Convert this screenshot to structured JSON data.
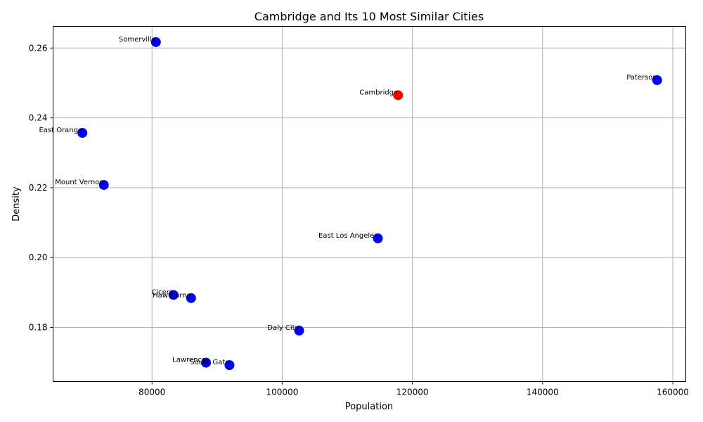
{
  "chart_data": {
    "type": "scatter",
    "title": "Cambridge and Its 10 Most Similar Cities",
    "xlabel": "Population",
    "ylabel": "Density",
    "xlim": [
      64800,
      162000
    ],
    "ylim": [
      0.1645,
      0.2662
    ],
    "xticks": [
      80000,
      100000,
      120000,
      140000,
      160000
    ],
    "yticks": [
      0.18,
      0.2,
      0.22,
      0.24,
      0.26
    ],
    "xtick_labels": [
      "80000",
      "100000",
      "120000",
      "140000",
      "160000"
    ],
    "ytick_labels": [
      "0.18",
      "0.20",
      "0.22",
      "0.24",
      "0.26"
    ],
    "grid": true,
    "points": [
      {
        "label": "Cambridge",
        "x": 117800,
        "y": 0.2465,
        "color": "#ff0000"
      },
      {
        "label": "Somerville",
        "x": 80600,
        "y": 0.2617,
        "color": "#0000ff"
      },
      {
        "label": "Paterson",
        "x": 157600,
        "y": 0.2508,
        "color": "#0000ff"
      },
      {
        "label": "East Orange",
        "x": 69300,
        "y": 0.2357,
        "color": "#0000ff"
      },
      {
        "label": "Mount Vernon",
        "x": 72600,
        "y": 0.2208,
        "color": "#0000ff"
      },
      {
        "label": "East Los Angeles",
        "x": 114700,
        "y": 0.2055,
        "color": "#0000ff"
      },
      {
        "label": "Cicero",
        "x": 83300,
        "y": 0.1893,
        "color": "#0000ff"
      },
      {
        "label": "Hawthorne",
        "x": 86000,
        "y": 0.1884,
        "color": "#0000ff"
      },
      {
        "label": "Daly City",
        "x": 102600,
        "y": 0.1791,
        "color": "#0000ff"
      },
      {
        "label": "Lawrence",
        "x": 88300,
        "y": 0.1699,
        "color": "#0000ff"
      },
      {
        "label": "South Gate",
        "x": 91900,
        "y": 0.1692,
        "color": "#0000ff"
      }
    ]
  }
}
